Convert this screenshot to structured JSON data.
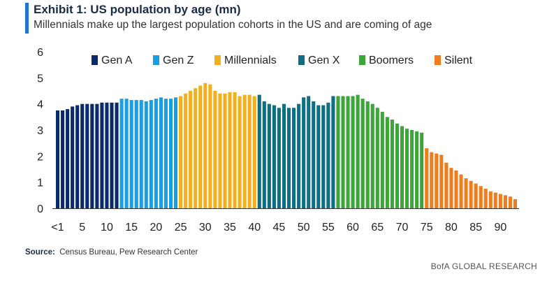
{
  "header": {
    "title": "Exhibit 1: US population by age (mn)",
    "subtitle": "Millennials make up the largest population cohorts in the US and are coming of age",
    "accent_color": "#1f72d6"
  },
  "source": {
    "label": "Source:",
    "text": "Census Bureau, Pew Research Center"
  },
  "footer": {
    "brand": "BofA GLOBAL RESEARCH"
  },
  "chart_data": {
    "type": "bar",
    "title": "US population by age (mn)",
    "ylim": [
      0,
      6
    ],
    "y_ticks": [
      "0",
      "1",
      "2",
      "3",
      "4",
      "5",
      "6"
    ],
    "x_ticks": [
      {
        "age": 0,
        "label": "<1"
      },
      {
        "age": 5,
        "label": "5"
      },
      {
        "age": 10,
        "label": "10"
      },
      {
        "age": 15,
        "label": "15"
      },
      {
        "age": 20,
        "label": "20"
      },
      {
        "age": 25,
        "label": "25"
      },
      {
        "age": 30,
        "label": "30"
      },
      {
        "age": 35,
        "label": "35"
      },
      {
        "age": 40,
        "label": "40"
      },
      {
        "age": 45,
        "label": "45"
      },
      {
        "age": 50,
        "label": "50"
      },
      {
        "age": 55,
        "label": "55"
      },
      {
        "age": 60,
        "label": "60"
      },
      {
        "age": 65,
        "label": "65"
      },
      {
        "age": 70,
        "label": "70"
      },
      {
        "age": 75,
        "label": "75"
      },
      {
        "age": 80,
        "label": "80"
      },
      {
        "age": 85,
        "label": "85"
      },
      {
        "age": 90,
        "label": "90"
      }
    ],
    "legend_position": "top",
    "grid": false,
    "series": [
      {
        "name": "Gen A",
        "color": "#0b2a6b",
        "start_age": 0,
        "values": [
          3.75,
          3.75,
          3.8,
          3.9,
          3.95,
          4.0,
          4.0,
          4.0,
          4.0,
          4.05,
          4.05,
          4.05,
          4.05
        ]
      },
      {
        "name": "Gen Z",
        "color": "#1a9ee0",
        "start_age": 13,
        "values": [
          4.2,
          4.2,
          4.15,
          4.15,
          4.15,
          4.1,
          4.15,
          4.2,
          4.25,
          4.2,
          4.2,
          4.25
        ]
      },
      {
        "name": "Millennials",
        "color": "#f2b01e",
        "start_age": 25,
        "values": [
          4.3,
          4.4,
          4.5,
          4.6,
          4.7,
          4.8,
          4.75,
          4.5,
          4.4,
          4.4,
          4.45,
          4.45,
          4.3,
          4.35,
          4.35,
          4.3
        ]
      },
      {
        "name": "Gen X",
        "color": "#0e6f84",
        "start_age": 41,
        "values": [
          4.35,
          4.1,
          4.0,
          3.95,
          3.85,
          4.0,
          3.85,
          3.85,
          4.0,
          4.25,
          4.3,
          4.1,
          3.95,
          3.95,
          4.05,
          4.3
        ]
      },
      {
        "name": "Boomers",
        "color": "#3da53a",
        "start_age": 57,
        "values": [
          4.3,
          4.3,
          4.3,
          4.3,
          4.35,
          4.2,
          4.1,
          4.0,
          3.85,
          3.7,
          3.5,
          3.4,
          3.25,
          3.15,
          3.05,
          3.0,
          2.95,
          2.9
        ]
      },
      {
        "name": "Silent",
        "color": "#ef7d1d",
        "start_age": 75,
        "values": [
          2.3,
          2.15,
          2.1,
          2.05,
          1.75,
          1.55,
          1.45,
          1.3,
          1.15,
          1.05,
          0.95,
          0.85,
          0.75,
          0.65,
          0.6,
          0.55,
          0.5,
          0.45,
          0.35
        ]
      }
    ]
  }
}
